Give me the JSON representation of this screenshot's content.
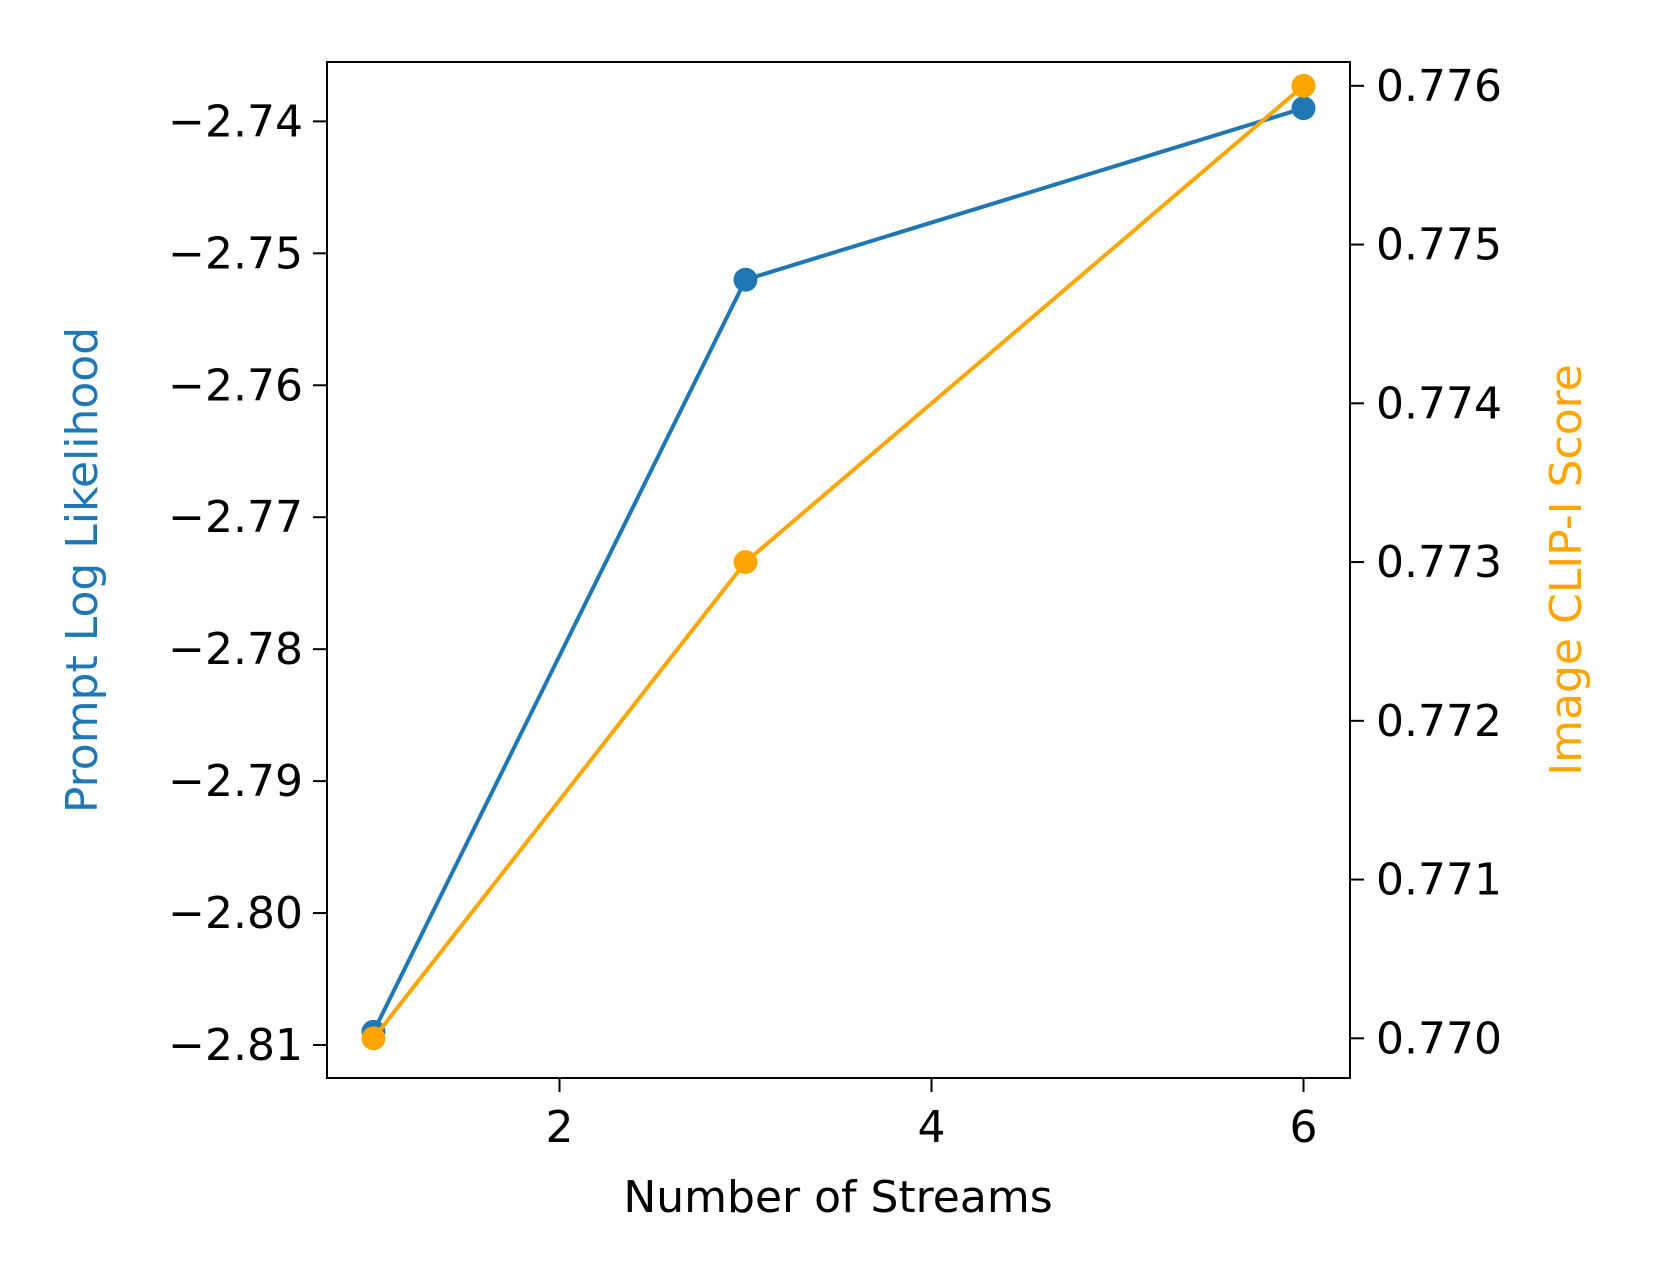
{
  "chart_data": {
    "type": "line",
    "xlabel": "Number of Streams",
    "x_ticks": [
      2,
      4,
      6
    ],
    "xlim": [
      0.75,
      6.25
    ],
    "left_axis": {
      "label": "Prompt Log Likelihood",
      "color": "#1f77b4",
      "ylim": [
        -2.8125,
        -2.7355
      ],
      "ticks": [
        -2.74,
        -2.75,
        -2.76,
        -2.77,
        -2.78,
        -2.79,
        -2.8,
        -2.81
      ],
      "tick_labels": [
        "−2.74",
        "−2.75",
        "−2.76",
        "−2.77",
        "−2.78",
        "−2.79",
        "−2.80",
        "−2.81"
      ]
    },
    "right_axis": {
      "label": "Image CLIP-I Score",
      "color": "#ffa500",
      "ylim": [
        0.76975,
        0.77615
      ],
      "ticks": [
        0.776,
        0.775,
        0.774,
        0.773,
        0.772,
        0.771,
        0.77
      ],
      "tick_labels": [
        "0.776",
        "0.775",
        "0.774",
        "0.773",
        "0.772",
        "0.771",
        "0.770"
      ]
    },
    "series": [
      {
        "axis": "left",
        "color": "#1f77b4",
        "x": [
          1,
          3,
          6
        ],
        "y": [
          -2.809,
          -2.752,
          -2.739
        ]
      },
      {
        "axis": "right",
        "color": "#ffa500",
        "x": [
          1,
          3,
          6
        ],
        "y": [
          0.77,
          0.773,
          0.776
        ]
      }
    ]
  }
}
